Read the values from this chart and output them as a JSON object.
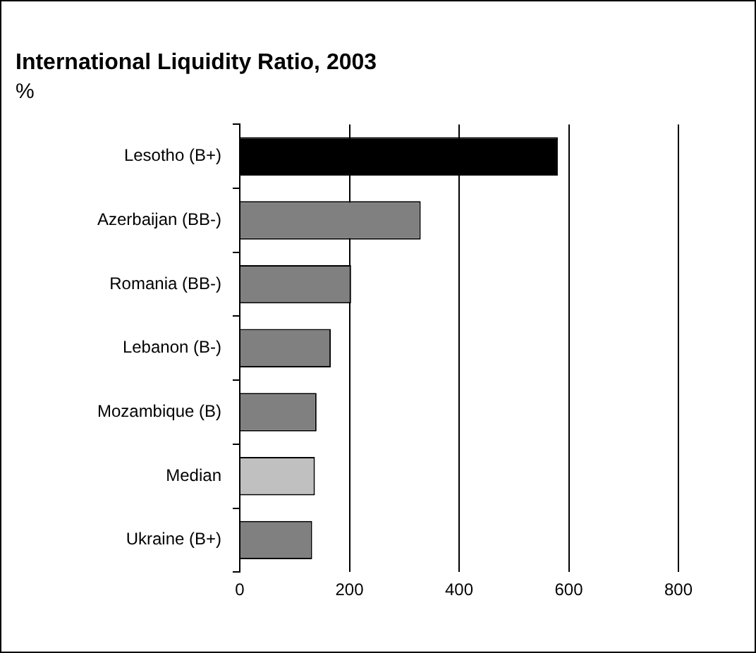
{
  "chart_data": {
    "type": "bar",
    "orientation": "horizontal",
    "title": "International Liquidity Ratio, 2003",
    "subtitle": "%",
    "categories": [
      "Lesotho (B+)",
      "Azerbaijan (BB-)",
      "Romania (BB-)",
      "Lebanon (B-)",
      "Mozambique (B)",
      "Median",
      "Ukraine (B+)"
    ],
    "values": [
      580,
      330,
      203,
      166,
      140,
      137,
      132
    ],
    "colors": [
      "#000000",
      "#808080",
      "#808080",
      "#808080",
      "#808080",
      "#c0c0c0",
      "#808080"
    ],
    "xlim": [
      0,
      800
    ],
    "xticks": [
      0,
      200,
      400,
      600,
      800
    ],
    "grid": "x",
    "legend": false
  }
}
